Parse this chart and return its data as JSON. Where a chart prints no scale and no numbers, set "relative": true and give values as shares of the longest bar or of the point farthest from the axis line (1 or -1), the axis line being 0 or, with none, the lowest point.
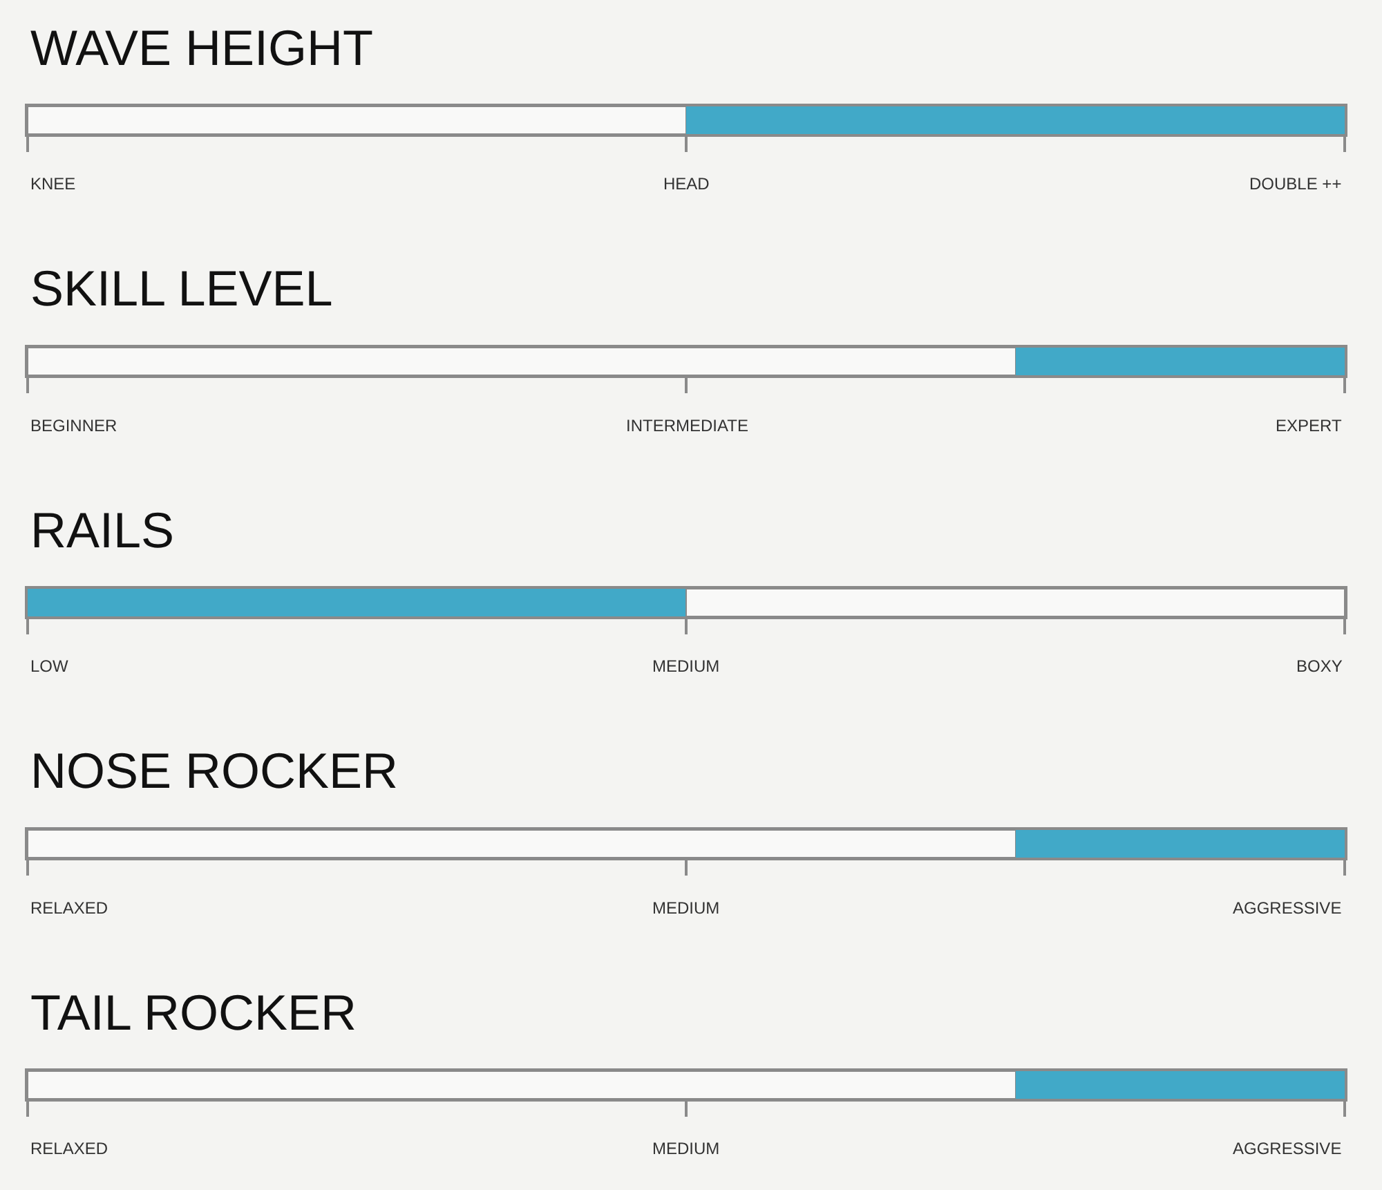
{
  "chart_data": [
    {
      "type": "bar",
      "title": "WAVE HEIGHT",
      "orientation": "horizontal",
      "stacked": true,
      "relative": true,
      "categories": [
        null
      ],
      "series": [
        {
          "color": "#f9f9f8",
          "values": [
            0.5
          ]
        },
        {
          "color": "#41a9c8",
          "values": [
            0.5
          ]
        }
      ],
      "annotations": [
        "KNEE",
        "HEAD",
        "DOUBLE ++"
      ]
    },
    {
      "type": "bar",
      "title": "SKILL LEVEL",
      "orientation": "horizontal",
      "stacked": true,
      "relative": true,
      "categories": [
        null
      ],
      "series": [
        {
          "color": "#f9f9f8",
          "values": [
            0.75
          ]
        },
        {
          "color": "#41a9c8",
          "values": [
            0.25
          ]
        }
      ],
      "annotations": [
        "BEGINNER",
        "INTERMEDIATE",
        "EXPERT"
      ]
    },
    {
      "type": "bar",
      "title": "RAILS",
      "orientation": "horizontal",
      "stacked": true,
      "relative": true,
      "categories": [
        null
      ],
      "series": [
        {
          "color": "#41a9c8",
          "values": [
            0.5
          ]
        },
        {
          "color": "#f9f9f8",
          "values": [
            0.5
          ]
        }
      ],
      "annotations": [
        "LOW",
        "MEDIUM",
        "BOXY"
      ]
    },
    {
      "type": "bar",
      "title": "NOSE ROCKER",
      "orientation": "horizontal",
      "stacked": true,
      "relative": true,
      "categories": [
        null
      ],
      "series": [
        {
          "color": "#f9f9f8",
          "values": [
            0.75
          ]
        },
        {
          "color": "#41a9c8",
          "values": [
            0.25
          ]
        }
      ],
      "annotations": [
        "RELAXED",
        "MEDIUM",
        "AGGRESSIVE"
      ]
    },
    {
      "type": "bar",
      "title": "TAIL ROCKER",
      "orientation": "horizontal",
      "stacked": true,
      "relative": true,
      "categories": [
        null
      ],
      "series": [
        {
          "color": "#f9f9f8",
          "values": [
            0.75
          ]
        },
        {
          "color": "#41a9c8",
          "values": [
            0.25
          ]
        }
      ],
      "annotations": [
        "RELAXED",
        "MEDIUM",
        "AGGRESSIVE"
      ]
    }
  ]
}
